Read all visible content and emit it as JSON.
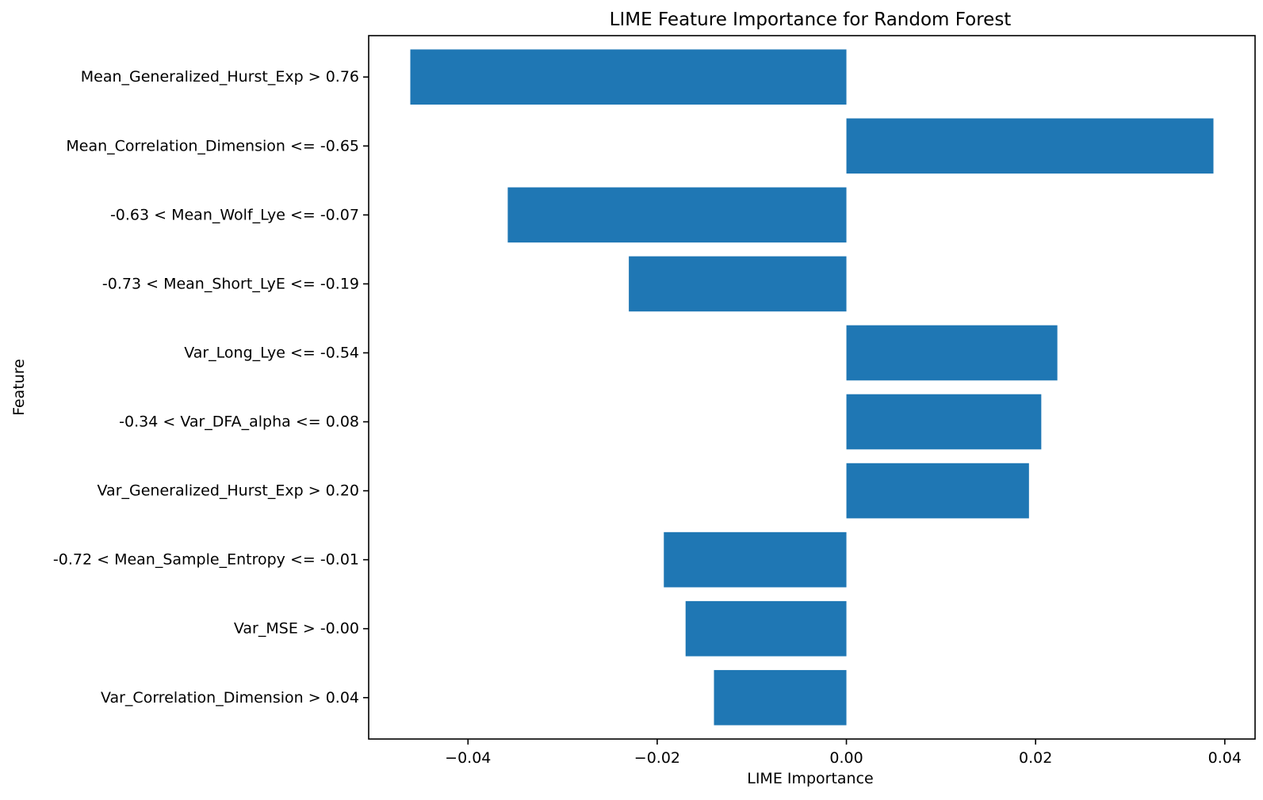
{
  "chart_data": {
    "type": "bar",
    "orientation": "horizontal",
    "title": "LIME Feature Importance for Random Forest",
    "xlabel": "LIME Importance",
    "ylabel": "Feature",
    "categories": [
      "Mean_Generalized_Hurst_Exp > 0.76",
      "Mean_Correlation_Dimension <= -0.65",
      "-0.63 < Mean_Wolf_Lye <= -0.07",
      "-0.73 < Mean_Short_LyE <= -0.19",
      "Var_Long_Lye <= -0.54",
      "-0.34 < Var_DFA_alpha <= 0.08",
      "Var_Generalized_Hurst_Exp > 0.20",
      "-0.72 < Mean_Sample_Entropy <= -0.01",
      "Var_MSE > -0.00",
      "Var_Correlation_Dimension > 0.04"
    ],
    "values": [
      -0.0461,
      0.0388,
      -0.0358,
      -0.023,
      0.0223,
      0.0206,
      0.0193,
      -0.0193,
      -0.017,
      -0.014
    ],
    "xlim": [
      -0.0505,
      0.0432
    ],
    "xticks": [
      -0.04,
      -0.02,
      0.0,
      0.02,
      0.04
    ],
    "xtick_labels": [
      "−0.04",
      "−0.02",
      "0.00",
      "0.02",
      "0.04"
    ],
    "bar_color": "#1f77b4",
    "grid": false,
    "legend": "none"
  }
}
